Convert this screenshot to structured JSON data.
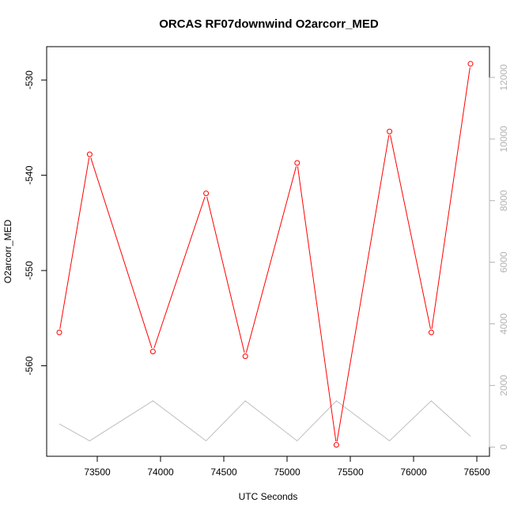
{
  "chart_data": {
    "type": "line",
    "title": "ORCAS RF07downwind O2arcorr_MED",
    "xlabel": "UTC Seconds",
    "ylabel": "O2arcorr_MED",
    "xlim": [
      73100,
      76600
    ],
    "ylim": [
      -569.5,
      -526.5
    ],
    "ylim_right": [
      -300,
      13000
    ],
    "xticks": [
      73500,
      74000,
      74500,
      75000,
      75500,
      76000,
      76500
    ],
    "yticks": [
      -530,
      -540,
      -550,
      -560
    ],
    "yticks_right": [
      0,
      2000,
      4000,
      6000,
      8000,
      10000,
      12000
    ],
    "colors": {
      "primary": "#ff0000",
      "secondary": "#bebebe"
    },
    "series": [
      {
        "axis": "left",
        "style": "line+points",
        "x": [
          73200,
          73440,
          73940,
          74360,
          74670,
          75080,
          75390,
          75810,
          76140,
          76450
        ],
        "y": [
          -556.5,
          -537.8,
          -558.5,
          -541.9,
          -559.0,
          -538.7,
          -568.3,
          -535.4,
          -556.5,
          -528.3
        ]
      },
      {
        "axis": "right",
        "style": "line",
        "x": [
          73200,
          73440,
          73940,
          74360,
          74670,
          75080,
          75390,
          75810,
          76140,
          76450
        ],
        "y": [
          750,
          200,
          1500,
          200,
          1500,
          200,
          1500,
          200,
          1500,
          350
        ]
      }
    ]
  }
}
